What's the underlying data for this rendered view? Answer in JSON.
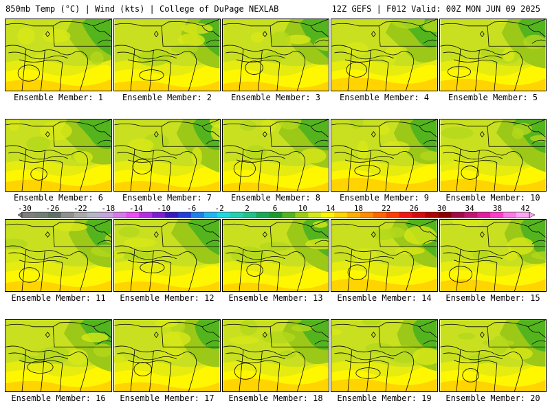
{
  "header": {
    "left": "850mb Temp (°C) | Wind (kts) | College of DuPage NEXLAB",
    "right": "12Z GEFS | F012 Valid: 00Z MON JUN 09 2025"
  },
  "panels": [
    {
      "label": "Ensemble Member: 1",
      "member": 1
    },
    {
      "label": "Ensemble Member: 2",
      "member": 2
    },
    {
      "label": "Ensemble Member: 3",
      "member": 3
    },
    {
      "label": "Ensemble Member: 4",
      "member": 4
    },
    {
      "label": "Ensemble Member: 5",
      "member": 5
    },
    {
      "label": "Ensemble Member: 6",
      "member": 6
    },
    {
      "label": "Ensemble Member: 7",
      "member": 7
    },
    {
      "label": "Ensemble Member: 8",
      "member": 8
    },
    {
      "label": "Ensemble Member: 9",
      "member": 9
    },
    {
      "label": "Ensemble Member: 10",
      "member": 10
    },
    {
      "label": "Ensemble Member: 11",
      "member": 11
    },
    {
      "label": "Ensemble Member: 12",
      "member": 12
    },
    {
      "label": "Ensemble Member: 13",
      "member": 13
    },
    {
      "label": "Ensemble Member: 14",
      "member": 14
    },
    {
      "label": "Ensemble Member: 15",
      "member": 15
    },
    {
      "label": "Ensemble Member: 16",
      "member": 16
    },
    {
      "label": "Ensemble Member: 17",
      "member": 17
    },
    {
      "label": "Ensemble Member: 18",
      "member": 18
    },
    {
      "label": "Ensemble Member: 19",
      "member": 19
    },
    {
      "label": "Ensemble Member: 20",
      "member": 20
    }
  ],
  "colorbar": {
    "ticks": [
      "-30",
      "-26",
      "-22",
      "-18",
      "-14",
      "-10",
      "-6",
      "-2",
      "2",
      "6",
      "10",
      "14",
      "18",
      "22",
      "26",
      "30",
      "34",
      "38",
      "42"
    ],
    "colors": [
      "#7d7d7d",
      "#6e7e74",
      "#5f6f66",
      "#8f8f8f",
      "#a9a9a9",
      "#b6b6c9",
      "#c6a3dc",
      "#d77ae8",
      "#e94ef0",
      "#b42ee0",
      "#7a1fd0",
      "#3a1ab8",
      "#1f3fd8",
      "#1f7ee8",
      "#1fb6f0",
      "#1fd8e0",
      "#22d0b0",
      "#1fc08a",
      "#18a85a",
      "#1a9a2a",
      "#54b41e",
      "#9ccc14",
      "#d6e81a",
      "#fff700",
      "#ffd400",
      "#ffae00",
      "#ff8c00",
      "#ff6400",
      "#ff3c00",
      "#f01414",
      "#d40a0a",
      "#b00000",
      "#8c0000",
      "#a00a46",
      "#c0166e",
      "#e01e9c",
      "#ff3cc8",
      "#ff78e6",
      "#ffa8f0"
    ]
  }
}
